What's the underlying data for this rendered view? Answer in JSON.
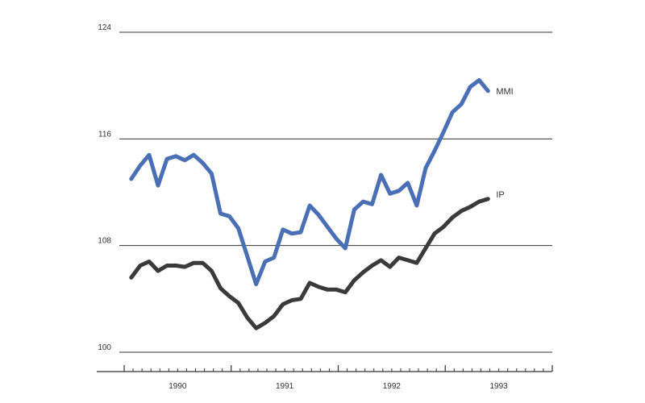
{
  "chart_data": {
    "type": "line",
    "title": "",
    "xlabel": "",
    "ylabel": "",
    "ylim": [
      100,
      124
    ],
    "yticks": [
      100,
      108,
      116,
      124
    ],
    "x_start_year": 1989.5,
    "x_end_year": 1993.5,
    "xticks": [
      "1990",
      "1991",
      "1992",
      "1993"
    ],
    "grid": true,
    "series": [
      {
        "name": "MMI",
        "color": "#4a6fb5",
        "values": [
          113,
          114,
          114.8,
          112.5,
          114.5,
          114.7,
          114.4,
          114.8,
          114.2,
          113.4,
          110.4,
          110.2,
          109.3,
          107.2,
          105.1,
          106.8,
          107.1,
          109.2,
          108.9,
          109,
          111,
          110.3,
          109.4,
          108.5,
          107.8,
          110.7,
          111.3,
          111.1,
          113.3,
          111.9,
          112.1,
          112.7,
          111,
          113.8,
          115.1,
          116.5,
          118,
          118.6,
          119.9,
          120.4,
          119.6
        ]
      },
      {
        "name": "IP",
        "color": "#3a3a3a",
        "values": [
          105.6,
          106.5,
          106.8,
          106.1,
          106.5,
          106.5,
          106.4,
          106.7,
          106.7,
          106.1,
          104.8,
          104.2,
          103.7,
          102.6,
          101.8,
          102.2,
          102.7,
          103.6,
          103.9,
          104,
          105.2,
          104.9,
          104.7,
          104.7,
          104.5,
          105.4,
          106,
          106.5,
          106.9,
          106.4,
          107.1,
          106.9,
          106.7,
          107.8,
          108.9,
          109.4,
          110.1,
          110.6,
          110.9,
          111.3,
          111.5
        ]
      }
    ]
  }
}
